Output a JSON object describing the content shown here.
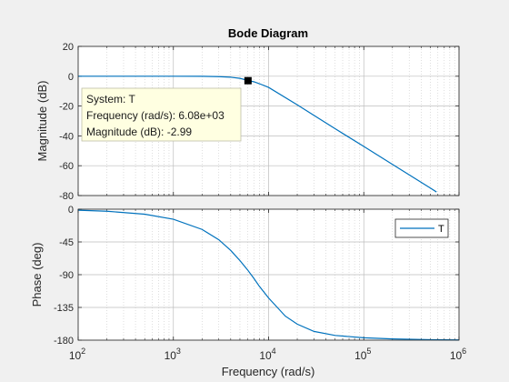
{
  "figure": {
    "background": "#f0f0f0"
  },
  "chart_data": {
    "type": "line",
    "title": "Bode Diagram",
    "xlabel": "Frequency  (rad/s)",
    "x_scale": "log",
    "xlim": [
      100,
      1000000
    ],
    "x_ticks": [
      {
        "value": 100,
        "base": "10",
        "exp": "2"
      },
      {
        "value": 1000,
        "base": "10",
        "exp": "3"
      },
      {
        "value": 10000,
        "base": "10",
        "exp": "4"
      },
      {
        "value": 100000,
        "base": "10",
        "exp": "5"
      },
      {
        "value": 1000000,
        "base": "10",
        "exp": "6"
      }
    ],
    "grid": true,
    "line_color": "#0072bd",
    "panels": [
      {
        "id": "magnitude",
        "ylabel": "Magnitude (dB)",
        "ylim": [
          -80,
          20
        ],
        "yticks": [
          20,
          0,
          -20,
          -40,
          -60,
          -80
        ],
        "ytick_labels": [
          "20",
          "0",
          "-20",
          "-40",
          "-60",
          "-80"
        ],
        "series": [
          {
            "name": "T",
            "x": [
              100,
              200,
              500,
              1000,
              2000,
              3000,
              4000,
              5000,
              6000,
              6080,
              7000,
              8000,
              10000,
              20000,
              50000,
              100000,
              200000,
              500000,
              580000
            ],
            "y": [
              0,
              0,
              0,
              -0.01,
              -0.05,
              -0.28,
              -0.67,
              -1.43,
              -2.76,
              -2.99,
              -3.7,
              -5.0,
              -7.5,
              -19.2,
              -35.2,
              -47.1,
              -59.1,
              -75.0,
              -77.6
            ]
          }
        ]
      },
      {
        "id": "phase",
        "ylabel": "Phase (deg)",
        "ylim": [
          -180,
          0
        ],
        "yticks": [
          0,
          -45,
          -90,
          -135,
          -180
        ],
        "ytick_labels": [
          "0",
          "-45",
          "-90",
          "-135",
          "-180"
        ],
        "series": [
          {
            "name": "T",
            "x": [
              100,
              200,
              500,
              1000,
              2000,
              3000,
              4000,
              5000,
              6000,
              7000,
              8000,
              10000,
              15000,
              20000,
              30000,
              50000,
              100000,
              200000,
              500000,
              1000000
            ],
            "y": [
              -1.4,
              -2.8,
              -6.9,
              -13.8,
              -27.8,
              -42,
              -56.7,
              -70.6,
              -83.2,
              -95,
              -106,
              -122,
              -147,
              -158,
              -168,
              -173.5,
              -176.7,
              -178.3,
              -179.3,
              -179.7
            ]
          }
        ]
      }
    ],
    "datatip": {
      "x": 6080,
      "y": -2.99,
      "lines": [
        "System: T",
        "Frequency (rad/s): 6.08e+03",
        "Magnitude (dB): -2.99"
      ]
    },
    "legend": {
      "entries": [
        "T"
      ],
      "placement": "top-right"
    }
  }
}
